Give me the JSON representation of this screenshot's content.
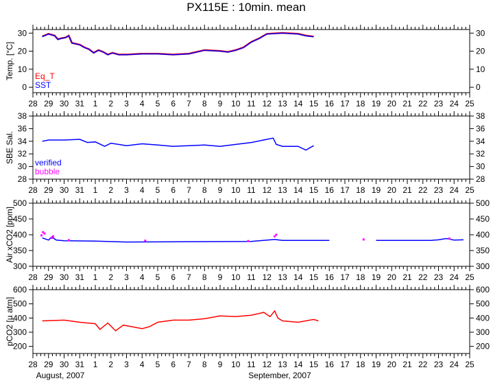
{
  "chart_data": [
    {
      "type": "line",
      "title": "PX115E : 10min. mean",
      "ylabel": "Temp. [°C]",
      "ylim": [
        -3,
        32
      ],
      "yticks": [
        0,
        10,
        20,
        30
      ],
      "xticks": [
        "28",
        "29",
        "30",
        "31",
        "1",
        "2",
        "3",
        "4",
        "5",
        "6",
        "7",
        "8",
        "9",
        "10",
        "11",
        "12",
        "13",
        "14",
        "15",
        "16",
        "17",
        "18",
        "19",
        "20",
        "21",
        "22",
        "23",
        "24",
        "25"
      ],
      "x_unit": "days since 28 Aug 2007",
      "series": [
        {
          "name": "Eq_T",
          "color": "#ff0000",
          "x": [
            0.6,
            1.0,
            1.4,
            1.6,
            1.8,
            2.1,
            2.3,
            2.5,
            3.0,
            3.3,
            3.6,
            3.9,
            4.2,
            4.5,
            4.8,
            5.1,
            5.5,
            6,
            7,
            8,
            9,
            10,
            11,
            12,
            12.5,
            13,
            13.5,
            14,
            14.5,
            15,
            16,
            17,
            17.5,
            18
          ],
          "y": [
            28.2,
            29.6,
            28.6,
            26.6,
            27.1,
            27.6,
            28.6,
            24.6,
            23.6,
            22.1,
            21.1,
            19.1,
            20.6,
            19.6,
            18.1,
            19.1,
            18.1,
            18.1,
            18.6,
            18.6,
            18.1,
            18.6,
            20.6,
            20.1,
            19.6,
            20.6,
            22.1,
            25.1,
            27.1,
            29.6,
            30.1,
            29.6,
            28.6,
            28.1
          ]
        },
        {
          "name": "SST",
          "color": "#0000ff",
          "x": [
            0.6,
            1.0,
            1.4,
            1.6,
            1.8,
            2.1,
            2.3,
            2.5,
            3.0,
            3.3,
            3.6,
            3.9,
            4.2,
            4.5,
            4.8,
            5.1,
            5.5,
            6,
            7,
            8,
            9,
            10,
            11,
            12,
            12.5,
            13,
            13.5,
            14,
            14.5,
            15,
            16,
            17,
            17.5,
            18
          ],
          "y": [
            28,
            29.5,
            28.5,
            26.5,
            27,
            27.5,
            28.5,
            24.5,
            23.5,
            22,
            21,
            19,
            20.5,
            19.5,
            18,
            19,
            18,
            18,
            18.5,
            18.5,
            18,
            18.5,
            20.5,
            20,
            19.5,
            20.5,
            22,
            25,
            27,
            29.5,
            30,
            29.5,
            28.5,
            28
          ]
        }
      ]
    },
    {
      "type": "line",
      "ylabel": "SBE Sal.",
      "ylim": [
        28,
        38
      ],
      "yticks": [
        28,
        30,
        32,
        34,
        36,
        38
      ],
      "series": [
        {
          "name": "verified",
          "color": "#0000ff",
          "x": [
            0.6,
            1,
            2,
            3,
            3.5,
            4,
            4.6,
            5,
            6,
            7,
            8,
            9,
            10,
            11,
            12,
            13,
            14,
            15,
            15.4,
            15.6,
            16,
            17,
            17.5,
            18
          ],
          "y": [
            34,
            34.2,
            34.2,
            34.3,
            33.8,
            33.9,
            33.2,
            33.7,
            33.3,
            33.6,
            33.4,
            33.2,
            33.3,
            33.4,
            33.2,
            33.5,
            33.8,
            34.3,
            34.5,
            33.5,
            33.2,
            33.2,
            32.6,
            33.3
          ]
        },
        {
          "name": "bubble",
          "color": "#ff00ff",
          "x": [],
          "y": []
        }
      ]
    },
    {
      "type": "line",
      "ylabel": "Air xCO2 [ppm]",
      "ylim": [
        300,
        500
      ],
      "yticks": [
        300,
        350,
        400,
        450,
        500
      ],
      "series": [
        {
          "name": "verified",
          "color": "#0000ff",
          "x": [
            0.6,
            1,
            1.2,
            1.5,
            2,
            4,
            6,
            10,
            14,
            15.5,
            16,
            19,
            null,
            22,
            25.5,
            26,
            26.5,
            27,
            27.6
          ],
          "y": [
            390,
            383,
            393,
            383,
            381,
            380,
            377,
            378,
            379,
            385,
            382,
            382,
            null,
            382,
            382,
            384,
            388,
            383,
            384
          ]
        },
        {
          "name": "bubble",
          "color": "#ff00ff",
          "x": [
            0.55,
            0.65,
            0.75,
            1.2,
            1.3,
            2.3,
            7.2,
            13.8,
            15.5,
            15.6,
            21.2,
            26.7
          ],
          "y": [
            398,
            408,
            404,
            390,
            395,
            383,
            381,
            380,
            395,
            400,
            385,
            388
          ]
        }
      ]
    },
    {
      "type": "line",
      "ylabel": "pCO2 [µ atm]",
      "ylim": [
        150,
        600
      ],
      "yticks": [
        200,
        300,
        400,
        500,
        600
      ],
      "xlabels": [
        "August, 2007",
        "September, 2007"
      ],
      "series": [
        {
          "name": "pCO2",
          "color": "#ff0000",
          "x": [
            0.6,
            2,
            3,
            4,
            4.3,
            4.8,
            5.3,
            5.8,
            6.3,
            7,
            7.5,
            8,
            9,
            10,
            11,
            12,
            13,
            14,
            14.8,
            15.2,
            15.5,
            15.7,
            16,
            17,
            18,
            18.3
          ],
          "y": [
            380,
            385,
            370,
            360,
            320,
            365,
            310,
            350,
            340,
            325,
            340,
            370,
            385,
            385,
            395,
            415,
            410,
            420,
            440,
            410,
            450,
            400,
            380,
            370,
            390,
            380
          ]
        }
      ]
    }
  ]
}
